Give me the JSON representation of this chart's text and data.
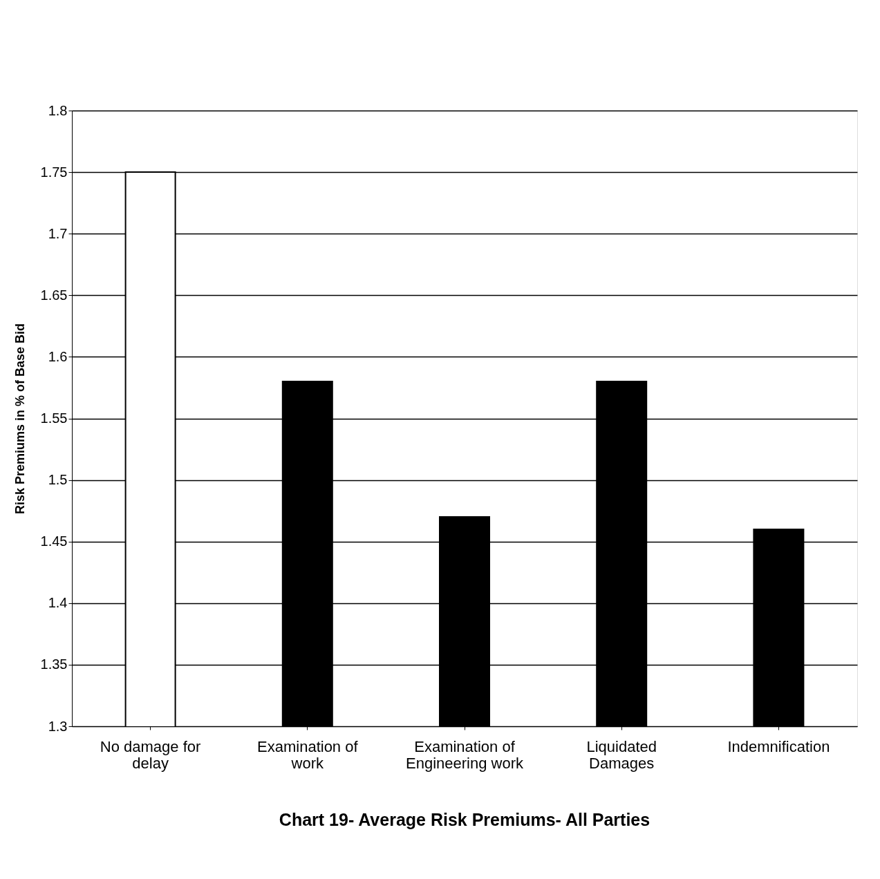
{
  "chart_data": {
    "type": "bar",
    "title": "Chart 19- Average Risk Premiums- All Parties",
    "ylabel": "Risk Premiums in % of Base Bid",
    "categories": [
      "No damage for delay",
      "Examination of work",
      "Examination of Engineering work",
      "Liquidated Damages",
      "Indemnification"
    ],
    "values": [
      1.75,
      1.58,
      1.47,
      1.58,
      1.46
    ],
    "colors": [
      "#ffffff",
      "#000000",
      "#000000",
      "#000000",
      "#000000"
    ],
    "ylim": [
      1.3,
      1.8
    ],
    "yticks": [
      1.3,
      1.35,
      1.4,
      1.45,
      1.5,
      1.55,
      1.6,
      1.65,
      1.7,
      1.75,
      1.8
    ],
    "grid": "y"
  }
}
